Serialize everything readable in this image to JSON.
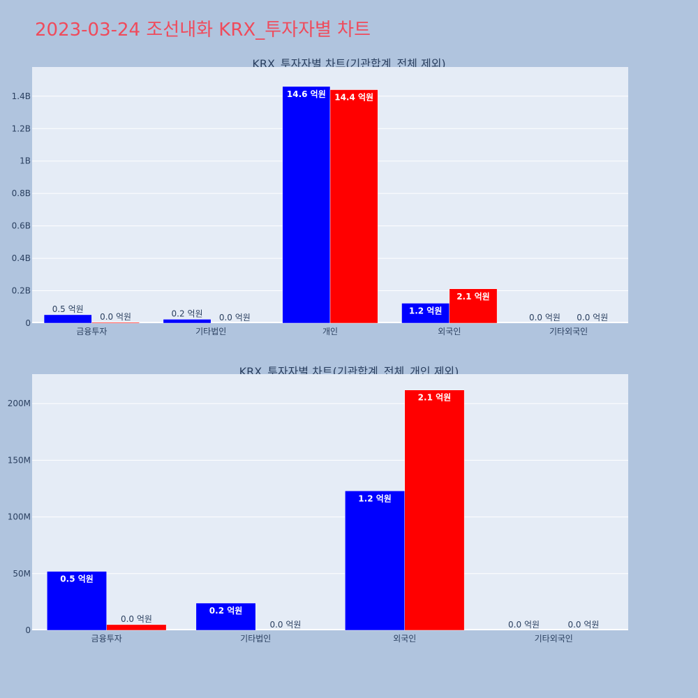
{
  "title": "2023-03-24 조선내화 KRX_투자자별 차트",
  "chart_data": [
    {
      "type": "bar",
      "title": "KRX_투자자별 차트(기관합계_전체 제외)",
      "categories": [
        "금융투자",
        "기타법인",
        "개인",
        "외국인",
        "기타외국인"
      ],
      "series": [
        {
          "color": "#0000ff",
          "values": [
            52000000,
            24000000,
            1460000000,
            123000000,
            0
          ],
          "labels": [
            "0.5 억원",
            "0.2 억원",
            "14.6 억원",
            "1.2 억원",
            "0.0 억원"
          ]
        },
        {
          "color": "#ff0000",
          "values": [
            5000000,
            0,
            1440000000,
            212000000,
            0
          ],
          "labels": [
            "0.0 억원",
            "0.0 억원",
            "14.4 억원",
            "2.1 억원",
            "0.0 억원"
          ]
        }
      ],
      "yticks": [
        0,
        200000000,
        400000000,
        600000000,
        800000000,
        1000000000,
        1200000000,
        1400000000
      ],
      "ytick_labels": [
        "0",
        "0.2B",
        "0.4B",
        "0.6B",
        "0.8B",
        "1B",
        "1.2B",
        "1.4B"
      ],
      "ylim": [
        0,
        1580000000
      ],
      "grid": true
    },
    {
      "type": "bar",
      "title": "KRX_투자자별 차트(기관합계_전체_개인 제외)",
      "categories": [
        "금융투자",
        "기타법인",
        "외국인",
        "기타외국인"
      ],
      "series": [
        {
          "color": "#0000ff",
          "values": [
            52000000,
            24000000,
            123000000,
            0
          ],
          "labels": [
            "0.5 억원",
            "0.2 억원",
            "1.2 억원",
            "0.0 억원"
          ]
        },
        {
          "color": "#ff0000",
          "values": [
            5000000,
            0,
            212000000,
            0
          ],
          "labels": [
            "0.0 억원",
            "0.0 억원",
            "2.1 억원",
            "0.0 억원"
          ]
        }
      ],
      "yticks": [
        0,
        50000000,
        100000000,
        150000000,
        200000000
      ],
      "ytick_labels": [
        "0",
        "50M",
        "100M",
        "150M",
        "200M"
      ],
      "ylim": [
        0,
        226000000
      ],
      "grid": true
    }
  ]
}
